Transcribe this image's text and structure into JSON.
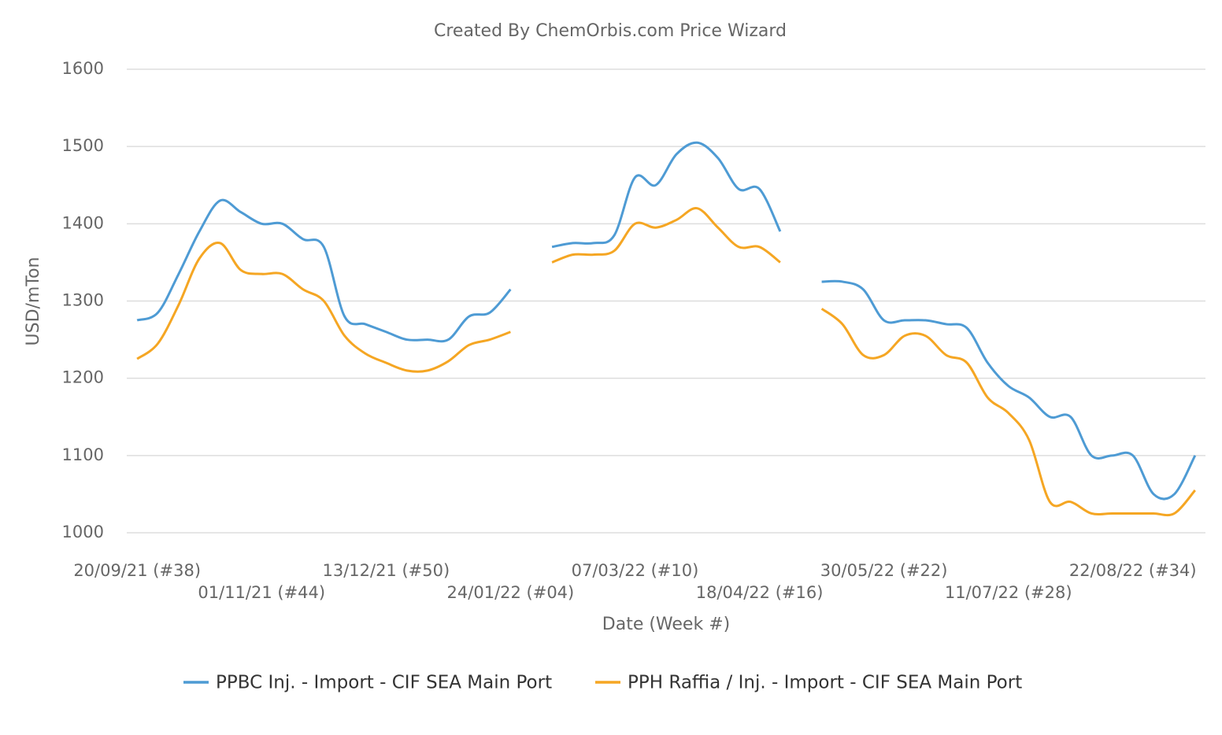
{
  "chart_data": {
    "type": "line",
    "title": "Created By ChemOrbis.com Price Wizard",
    "y_label": "USD/mTon",
    "x_label": "Date (Week #)",
    "categories": [
      "20/09/21 (#38)",
      null,
      null,
      null,
      null,
      null,
      "01/11/21 (#44)",
      null,
      null,
      null,
      null,
      null,
      "13/12/21 (#50)",
      null,
      null,
      null,
      null,
      null,
      "24/01/22 (#04)",
      null,
      null,
      null,
      null,
      null,
      "07/03/22 (#10)",
      null,
      null,
      null,
      null,
      null,
      "18/04/22 (#16)",
      null,
      null,
      null,
      null,
      null,
      "30/05/22 (#22)",
      null,
      null,
      null,
      null,
      null,
      "11/07/22 (#28)",
      null,
      null,
      null,
      null,
      null,
      "22/08/22 (#34)",
      null,
      null,
      null
    ],
    "series": [
      {
        "name": "PPBC Inj. - Import - CIF SEA Main Port",
        "color": "#4e9bd4",
        "values": [
          1275,
          1285,
          1335,
          1390,
          1430,
          1415,
          1400,
          1400,
          1380,
          1370,
          1280,
          1270,
          1260,
          1250,
          1250,
          1250,
          1280,
          1285,
          1315,
          null,
          1370,
          1375,
          1375,
          1385,
          1460,
          1450,
          1490,
          1505,
          1485,
          1445,
          1445,
          1390,
          null,
          1325,
          1325,
          1315,
          1275,
          1275,
          1275,
          1270,
          1265,
          1220,
          1190,
          1175,
          1150,
          1150,
          1100,
          1100,
          1100,
          1050,
          1050,
          1100
        ]
      },
      {
        "name": "PPH Raffia / Inj. - Import - CIF SEA Main Port",
        "color": "#f5a623",
        "values": [
          1225,
          1245,
          1295,
          1355,
          1375,
          1340,
          1335,
          1335,
          1315,
          1300,
          1255,
          1232,
          1220,
          1210,
          1210,
          1222,
          1243,
          1250,
          1260,
          null,
          1350,
          1360,
          1360,
          1365,
          1400,
          1395,
          1405,
          1420,
          1395,
          1370,
          1370,
          1350,
          null,
          1290,
          1270,
          1230,
          1230,
          1255,
          1255,
          1230,
          1220,
          1175,
          1155,
          1120,
          1040,
          1040,
          1025,
          1025,
          1025,
          1025,
          1025,
          1055
        ]
      }
    ],
    "ylim": [
      1000,
      1600
    ],
    "yticks": [
      1000,
      1100,
      1200,
      1300,
      1400,
      1500,
      1600
    ],
    "grid": true,
    "legend": "bottom"
  }
}
